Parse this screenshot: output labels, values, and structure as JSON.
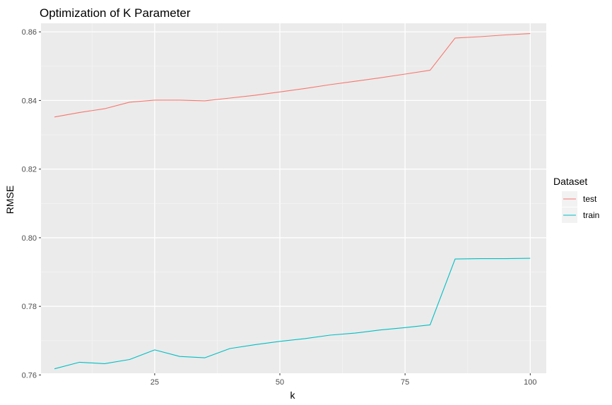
{
  "chart_data": {
    "type": "line",
    "title": "Optimization of K Parameter",
    "xlabel": "k",
    "ylabel": "RMSE",
    "xlim": [
      2.3,
      103.2
    ],
    "ylim": [
      0.7605,
      0.8625
    ],
    "x_ticks": [
      25,
      50,
      75,
      100
    ],
    "y_ticks": [
      0.76,
      0.78,
      0.8,
      0.82,
      0.84,
      0.86
    ],
    "grid": true,
    "legend": {
      "title": "Dataset",
      "position": "right"
    },
    "x": [
      5,
      10,
      15,
      20,
      25,
      30,
      35,
      40,
      45,
      50,
      55,
      60,
      65,
      70,
      75,
      80,
      85,
      90,
      95,
      100
    ],
    "series": [
      {
        "name": "test",
        "color": "#F8766D",
        "values": [
          0.8352,
          0.8365,
          0.8376,
          0.8395,
          0.8401,
          0.8401,
          0.8399,
          0.8407,
          0.8415,
          0.8425,
          0.8435,
          0.8446,
          0.8456,
          0.8466,
          0.8477,
          0.8488,
          0.8582,
          0.8586,
          0.8591,
          0.8595
        ]
      },
      {
        "name": "train",
        "color": "#00BFC4",
        "values": [
          0.7618,
          0.7637,
          0.7633,
          0.7645,
          0.7673,
          0.7654,
          0.765,
          0.7677,
          0.7688,
          0.7698,
          0.7706,
          0.7716,
          0.7722,
          0.7731,
          0.7738,
          0.7746,
          0.7938,
          0.7939,
          0.7939,
          0.794
        ]
      }
    ]
  }
}
